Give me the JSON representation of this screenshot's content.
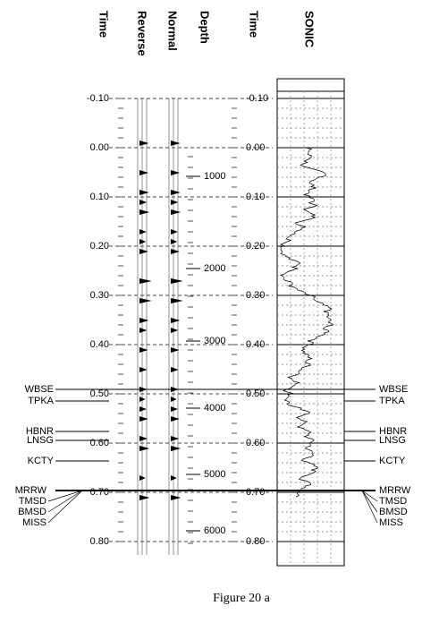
{
  "headers": [
    "Time",
    "Reverse",
    "Normal",
    "Depth",
    "Time",
    "SONIC"
  ],
  "time_ticks": [
    {
      "value": -0.1,
      "label": "-0.10"
    },
    {
      "value": 0,
      "label": "0.00"
    },
    {
      "value": 0.1,
      "label": "0.10"
    },
    {
      "value": 0.2,
      "label": "0.20"
    },
    {
      "value": 0.3,
      "label": "0.30"
    },
    {
      "value": 0.4,
      "label": "0.40"
    },
    {
      "value": 0.5,
      "label": "0.50"
    },
    {
      "value": 0.6,
      "label": "0.60"
    },
    {
      "value": 0.7,
      "label": "0.70"
    },
    {
      "value": 0.8,
      "label": "0.80"
    }
  ],
  "depth_ticks": [
    1000,
    2000,
    3000,
    4000,
    5000,
    6000
  ],
  "formations": [
    "WBSE",
    "TPKA",
    "HBNR",
    "LNSG",
    "KCTY",
    "MRRW",
    "TMSD",
    "BMSD",
    "MISS"
  ],
  "caption": "Figure 20 a"
}
